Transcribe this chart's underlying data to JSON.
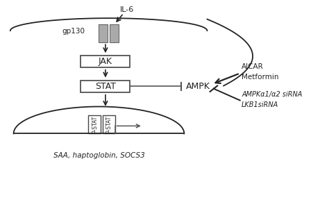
{
  "bg_color": "#ffffff",
  "fig_width": 4.74,
  "fig_height": 3.01,
  "dpi": 100,
  "il6_label": "IL-6",
  "gp130_label": "gp130",
  "jak_label": "JAK",
  "stat_label": "STAT",
  "ampk_label": "AMPK",
  "pstat_label": "P-STAT",
  "aicar_line1": "AICAR",
  "aicar_line2": "Metformin",
  "sirna_line1": "AMPKα1/α2 siRNA",
  "sirna_line2": "LKB1siRNA",
  "bottom_label": "SAA, haptoglobin, SOCS3",
  "dark": "#222222",
  "gray_receptor": "#aaaaaa",
  "line_col": "#555555"
}
